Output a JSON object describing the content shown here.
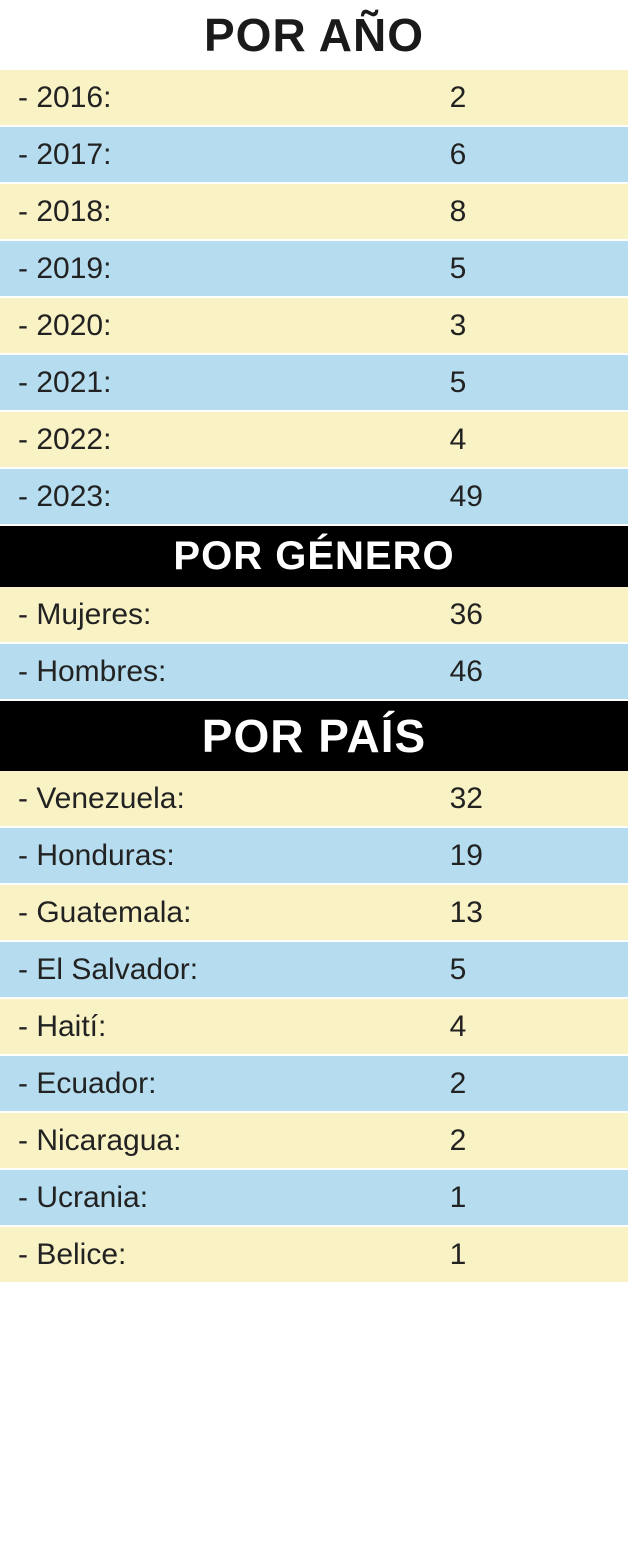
{
  "colors": {
    "header_bg_white": "#ffffff",
    "header_bg_black": "#000000",
    "header_fg_white": "#ffffff",
    "header_fg_black": "#1a1a1a",
    "row_odd": "#f9f2c4",
    "row_even": "#b6ddef",
    "text": "#222222"
  },
  "sections": [
    {
      "title": "POR AÑO",
      "header_style": "white_large",
      "rows": [
        {
          "label": "- 2016:",
          "value": "2"
        },
        {
          "label": "- 2017:",
          "value": "6"
        },
        {
          "label": "- 2018:",
          "value": "8"
        },
        {
          "label": "- 2019:",
          "value": "5"
        },
        {
          "label": "- 2020:",
          "value": "3"
        },
        {
          "label": "- 2021:",
          "value": "5"
        },
        {
          "label": "- 2022:",
          "value": "4"
        },
        {
          "label": "- 2023:",
          "value": "49"
        }
      ]
    },
    {
      "title": "POR GÉNERO",
      "header_style": "black_mid",
      "rows": [
        {
          "label": "- Mujeres:",
          "value": "36"
        },
        {
          "label": "- Hombres:",
          "value": "46"
        }
      ]
    },
    {
      "title": "POR PAÍS",
      "header_style": "black_large",
      "rows": [
        {
          "label": "- Venezuela:",
          "value": "32"
        },
        {
          "label": "- Honduras:",
          "value": "19"
        },
        {
          "label": "- Guatemala:",
          "value": "13"
        },
        {
          "label": "- El Salvador:",
          "value": "5"
        },
        {
          "label": "- Haití:",
          "value": "4"
        },
        {
          "label": "- Ecuador:",
          "value": "2"
        },
        {
          "label": "- Nicaragua:",
          "value": "2"
        },
        {
          "label": "- Ucrania:",
          "value": "1"
        },
        {
          "label": "- Belice:",
          "value": "1"
        }
      ]
    }
  ]
}
